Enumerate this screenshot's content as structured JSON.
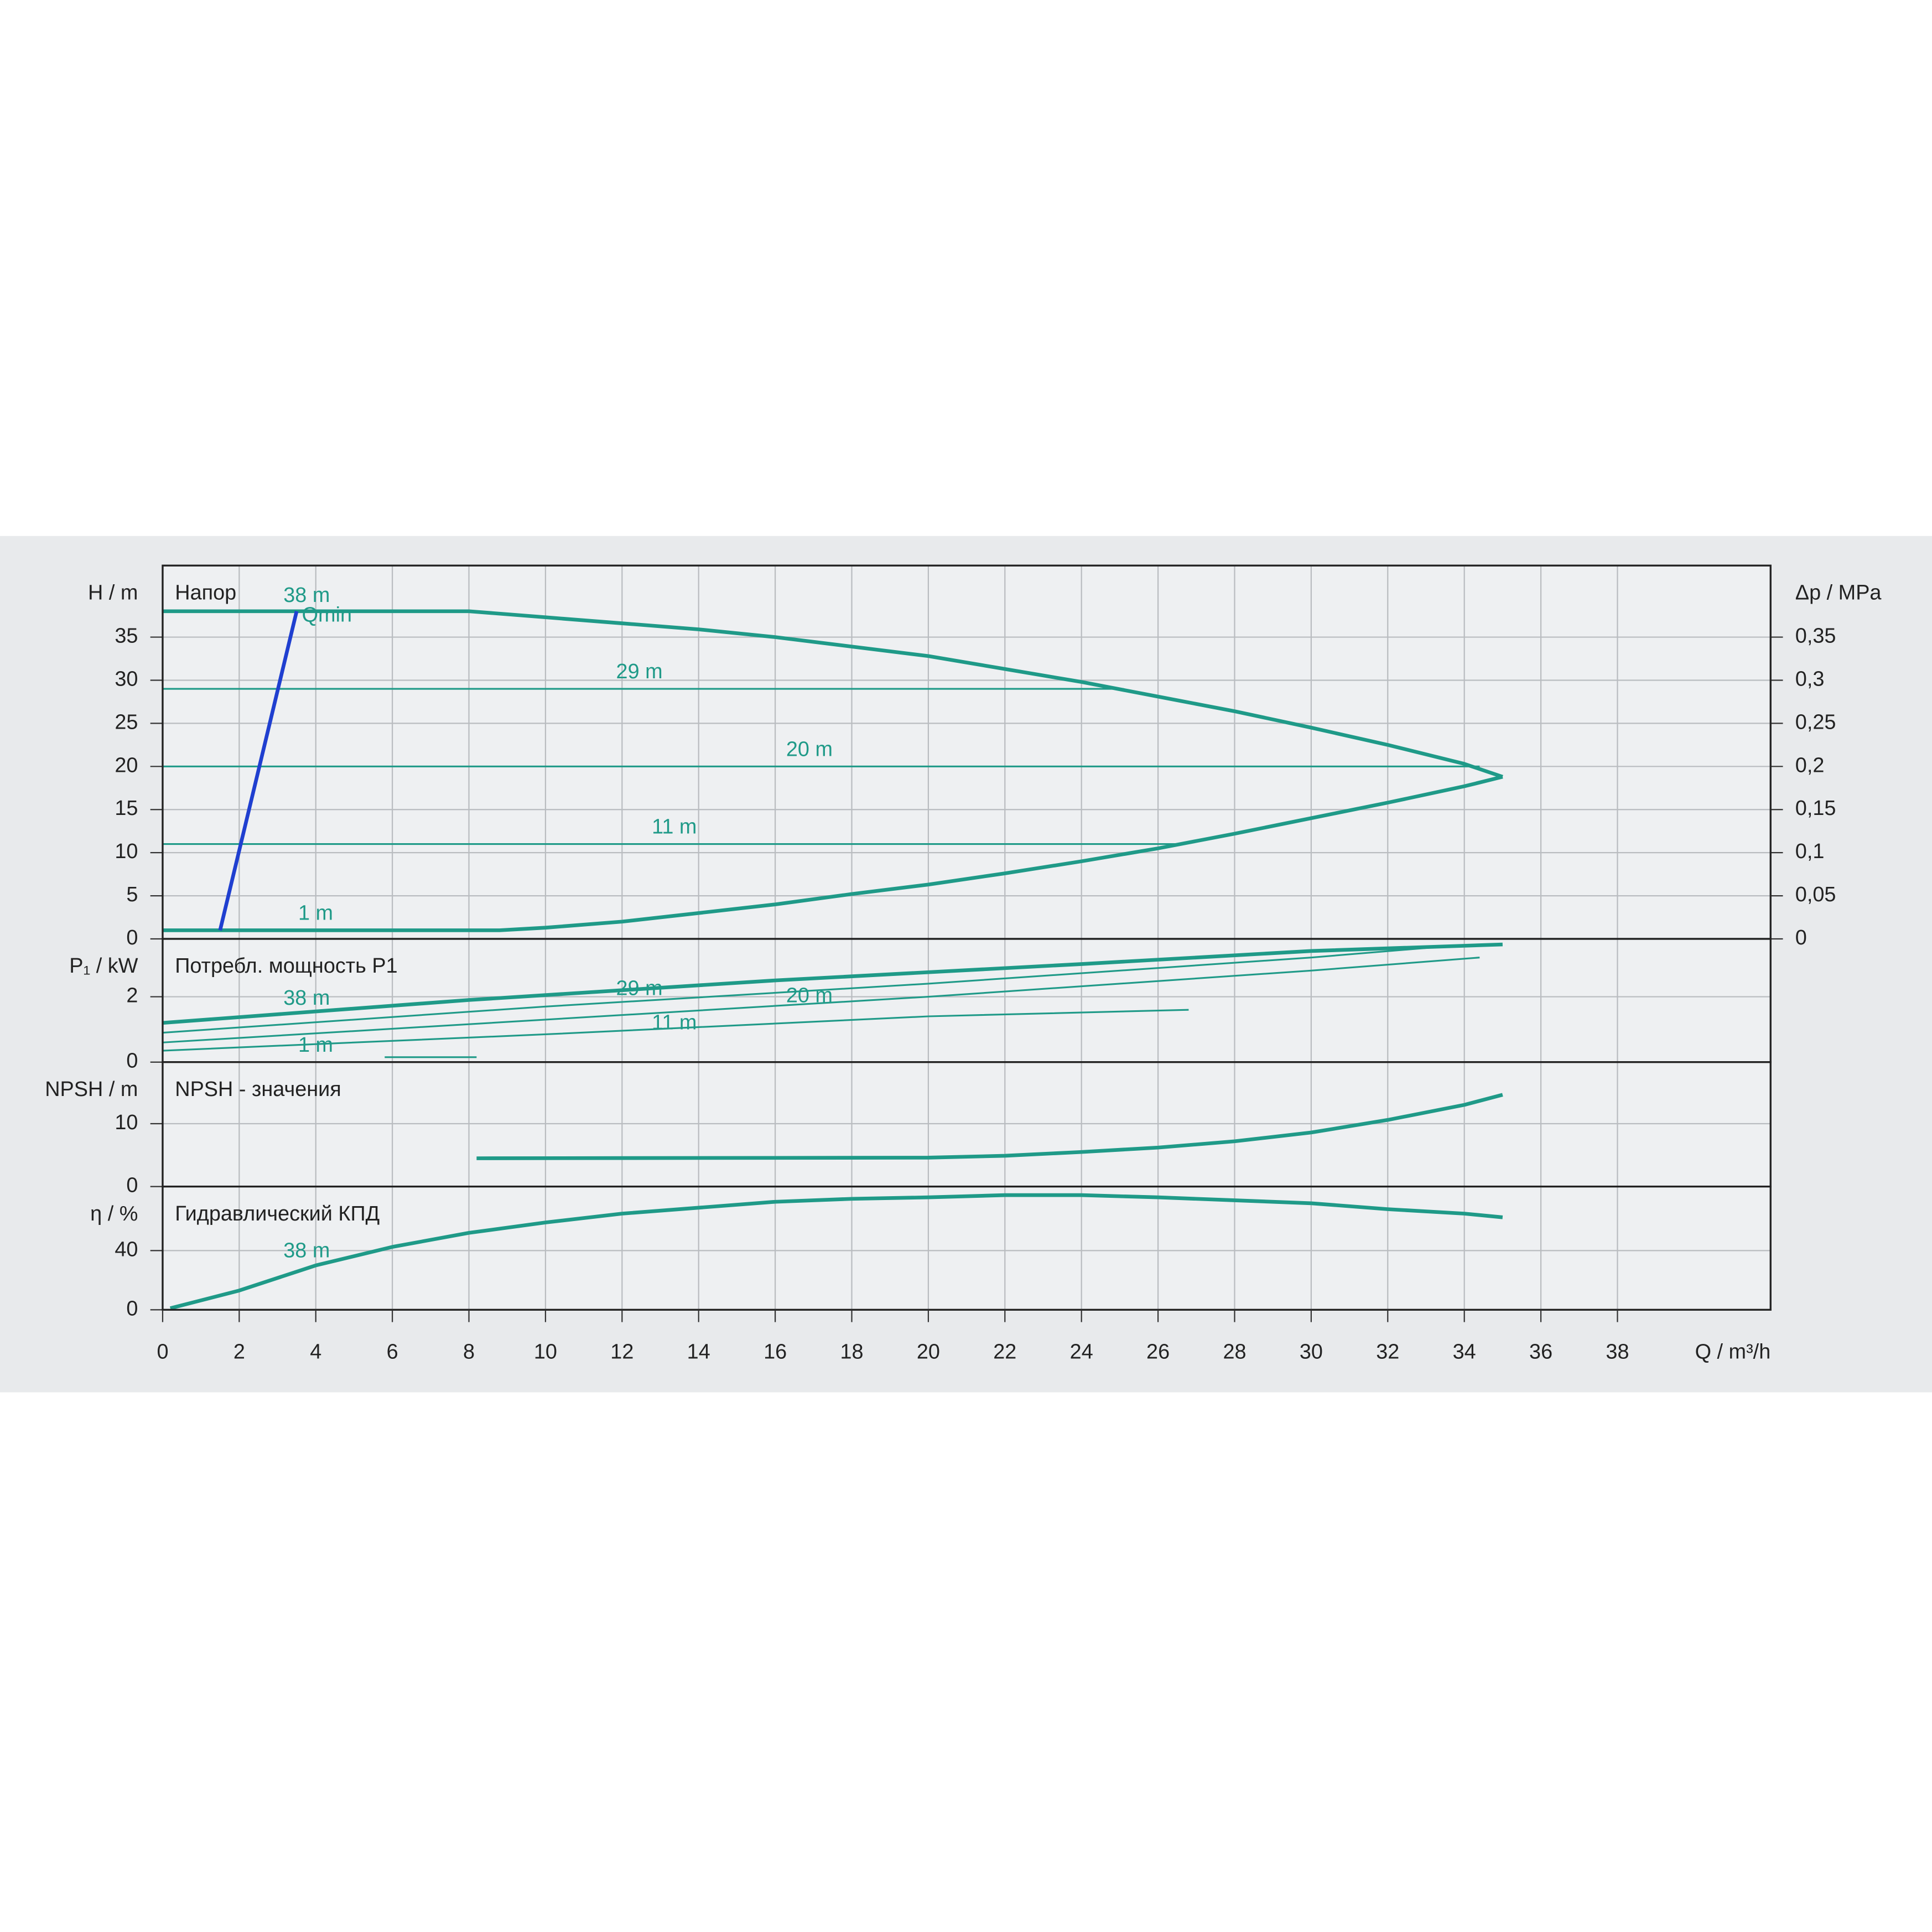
{
  "chart_data": [
    {
      "type": "line",
      "title": "Напор",
      "ylabel": "H / m",
      "y2label": "Δp / MPa",
      "xlim": [
        0,
        42
      ],
      "xticks": [
        0,
        2,
        4,
        6,
        8,
        10,
        12,
        14,
        16,
        18,
        20,
        22,
        24,
        26,
        28,
        30,
        32,
        34,
        36,
        38
      ],
      "ylim": [
        0,
        43.3
      ],
      "yticks": [
        0,
        5,
        10,
        15,
        20,
        25,
        30,
        35
      ],
      "y2lim": [
        0,
        0.433
      ],
      "y2ticks": [
        0,
        {
          "value": 0.05,
          "label": "0,05"
        },
        {
          "value": 0.1,
          "label": "0,1"
        },
        {
          "value": 0.15,
          "label": "0,15"
        },
        {
          "value": 0.2,
          "label": "0,2"
        },
        {
          "value": 0.25,
          "label": "0,25"
        },
        {
          "value": 0.3,
          "label": "0,3"
        },
        {
          "value": 0.35,
          "label": "0,35"
        }
      ],
      "grid": true,
      "series": [
        {
          "name": "38 m",
          "color": "#1f9a88",
          "x": [
            0,
            8,
            10,
            12,
            14,
            16,
            18,
            20,
            22,
            24,
            26,
            28,
            30,
            32,
            34,
            35
          ],
          "values": [
            38,
            38,
            37.3,
            36.6,
            35.9,
            35,
            33.9,
            32.8,
            31.3,
            29.8,
            28.1,
            26.4,
            24.5,
            22.5,
            20.3,
            18.8
          ]
        },
        {
          "name": "29 m",
          "color": "#1f9a88",
          "x": [
            0,
            25.1
          ],
          "values": [
            29,
            29
          ]
        },
        {
          "name": "20 m",
          "color": "#1f9a88",
          "x": [
            0,
            34.4
          ],
          "values": [
            20,
            20
          ]
        },
        {
          "name": "11 m",
          "color": "#1f9a88",
          "x": [
            0,
            26.6
          ],
          "values": [
            11,
            11
          ]
        },
        {
          "name": "1 m",
          "color": "#1f9a88",
          "x": [
            0,
            8.8,
            10,
            12,
            14,
            16,
            18,
            20,
            22,
            24,
            26,
            28,
            30,
            32,
            34,
            35
          ],
          "values": [
            1,
            1,
            1.3,
            2,
            3,
            4,
            5.2,
            6.3,
            7.6,
            9,
            10.5,
            12.2,
            14,
            15.8,
            17.7,
            18.8
          ]
        },
        {
          "name": "Qmin",
          "color": "#1f3fd0",
          "x": [
            1.5,
            3.5
          ],
          "values": [
            1,
            38
          ]
        }
      ]
    },
    {
      "type": "line",
      "title": "Потребл. мощность P1",
      "ylabel": "P₁ / kW",
      "xlim": [
        0,
        42
      ],
      "xticks": [
        0,
        2,
        4,
        6,
        8,
        10,
        12,
        14,
        16,
        18,
        20,
        22,
        24,
        26,
        28,
        30,
        32,
        34,
        36,
        38
      ],
      "ylim": [
        0,
        3.77
      ],
      "yticks": [
        0,
        2
      ],
      "grid": true,
      "series": [
        {
          "name": "38 m",
          "color": "#1f9a88",
          "x": [
            0,
            8,
            16,
            24,
            30,
            35
          ],
          "values": [
            1.2,
            1.9,
            2.5,
            3.0,
            3.4,
            3.6
          ]
        },
        {
          "name": "29 m",
          "color": "#1f9a88",
          "x": [
            0,
            10,
            20,
            30,
            33.6
          ],
          "values": [
            0.9,
            1.7,
            2.4,
            3.2,
            3.55
          ]
        },
        {
          "name": "20 m",
          "color": "#1f9a88",
          "x": [
            0,
            10,
            20,
            30,
            34.4
          ],
          "values": [
            0.6,
            1.3,
            2.0,
            2.8,
            3.2
          ]
        },
        {
          "name": "11 m",
          "color": "#1f9a88",
          "x": [
            0,
            10,
            20,
            26.8
          ],
          "values": [
            0.35,
            0.85,
            1.4,
            1.6
          ]
        },
        {
          "name": "1 m",
          "color": "#1f9a88",
          "x": [
            5.8,
            8.2
          ],
          "values": [
            0.15,
            0.15
          ]
        }
      ]
    },
    {
      "type": "line",
      "title": "NPSH - значения",
      "ylabel": "NPSH / m",
      "xlim": [
        0,
        42
      ],
      "xticks": [
        0,
        2,
        4,
        6,
        8,
        10,
        12,
        14,
        16,
        18,
        20,
        22,
        24,
        26,
        28,
        30,
        32,
        34,
        36,
        38
      ],
      "ylim": [
        0,
        19.8
      ],
      "yticks": [
        0,
        10
      ],
      "grid": true,
      "series": [
        {
          "color": "#1f9a88",
          "x": [
            8.2,
            20,
            22,
            24,
            26,
            28,
            30,
            32,
            34,
            35
          ],
          "values": [
            4.5,
            4.6,
            4.9,
            5.5,
            6.2,
            7.2,
            8.6,
            10.6,
            13,
            14.6
          ]
        }
      ]
    },
    {
      "type": "line",
      "title": "Гидравлический КПД",
      "ylabel": "η / %",
      "xlabel": "Q / m³/h",
      "xlim": [
        0,
        42
      ],
      "xticks": [
        0,
        2,
        4,
        6,
        8,
        10,
        12,
        14,
        16,
        18,
        20,
        22,
        24,
        26,
        28,
        30,
        32,
        34,
        36,
        38
      ],
      "ylim": [
        0,
        83.3
      ],
      "yticks": [
        0,
        40
      ],
      "grid": true,
      "series": [
        {
          "name": "38 m",
          "color": "#1f9a88",
          "x": [
            0.2,
            2,
            4,
            6,
            8,
            10,
            12,
            14,
            16,
            18,
            20,
            22,
            24,
            26,
            28,
            30,
            32,
            34,
            35
          ],
          "values": [
            1,
            13,
            30,
            42.5,
            52,
            59,
            65,
            69,
            73,
            75,
            76,
            77.5,
            77.5,
            76,
            74,
            72,
            68,
            65,
            62.5
          ]
        }
      ]
    }
  ]
}
